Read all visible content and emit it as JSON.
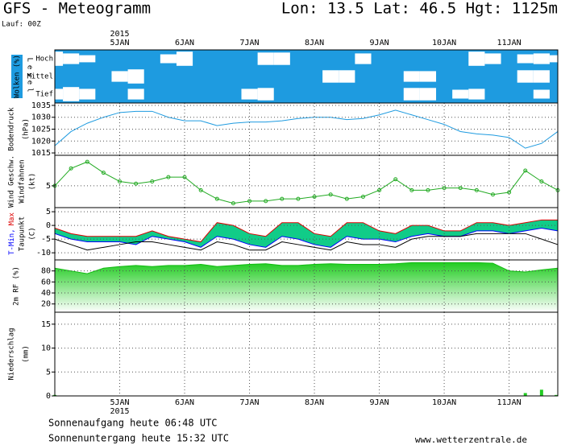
{
  "header": {
    "title": "GFS - Meteogramm",
    "location": "Lon: 13.5 Lat: 46.5 Hgt: 1125m",
    "run": "Lauf: 00Z"
  },
  "footer": {
    "sunrise": "Sonnenaufgang heute 06:48 UTC",
    "sunset": "Sonnenuntergang heute 15:32 UTC",
    "source": "www.wetterzentrale.de"
  },
  "time_axis": {
    "x": [
      0,
      6,
      12,
      18,
      24,
      30,
      36,
      42,
      48,
      54,
      60,
      66,
      72,
      78,
      84,
      90,
      96,
      102,
      108,
      114,
      120,
      126,
      132,
      138,
      144,
      150,
      156,
      162,
      168,
      174,
      180,
      186
    ],
    "xlim": [
      0,
      186
    ],
    "xticks": [
      {
        "value": 24,
        "label": "5JAN"
      },
      {
        "value": 48,
        "label": "6JAN"
      },
      {
        "value": 72,
        "label": "7JAN"
      },
      {
        "value": 96,
        "label": "8JAN"
      },
      {
        "value": 120,
        "label": "9JAN"
      },
      {
        "value": 144,
        "label": "10JAN"
      },
      {
        "value": 168,
        "label": "11JAN"
      }
    ],
    "year_label": "2015"
  },
  "chart_data": [
    {
      "type": "cloud",
      "title": "Wolken (%)",
      "ylabel": "Level",
      "layers": [
        "Hoch",
        "Mittel",
        "Tief"
      ],
      "color": "#ffffff",
      "background": "#1e9be0",
      "values": [
        [
          80,
          60,
          40,
          0,
          0,
          0,
          0,
          50,
          80,
          0,
          0,
          0,
          0,
          70,
          70,
          0,
          0,
          0,
          0,
          60,
          0,
          0,
          0,
          0,
          0,
          0,
          80,
          60,
          0,
          50,
          60,
          40
        ],
        [
          0,
          0,
          0,
          0,
          60,
          80,
          0,
          0,
          0,
          0,
          0,
          0,
          0,
          0,
          0,
          0,
          0,
          70,
          70,
          0,
          0,
          0,
          60,
          60,
          0,
          0,
          0,
          0,
          0,
          70,
          70,
          0
        ],
        [
          60,
          80,
          60,
          0,
          0,
          60,
          0,
          0,
          0,
          0,
          0,
          0,
          60,
          70,
          0,
          0,
          0,
          0,
          0,
          0,
          0,
          0,
          70,
          70,
          0,
          50,
          60,
          0,
          0,
          0,
          50,
          0
        ]
      ]
    },
    {
      "type": "line",
      "ylabel": "Bodendruck",
      "yunit": "(hPa)",
      "ylim": [
        1014,
        1036
      ],
      "yticks": [
        1015,
        1020,
        1025,
        1030,
        1035
      ],
      "grid": true,
      "series": [
        {
          "color": "#1e9be0",
          "values": [
            1018,
            1024,
            1027.5,
            1030,
            1032,
            1032.5,
            1032.5,
            1030,
            1028.5,
            1028.5,
            1026.5,
            1027.5,
            1028,
            1028,
            1028.5,
            1029.5,
            1030,
            1030,
            1029,
            1029.5,
            1031,
            1033,
            1031,
            1029,
            1027,
            1024,
            1023,
            1022.5,
            1021.5,
            1017,
            1019,
            1024
          ]
        }
      ]
    },
    {
      "type": "line",
      "ylabel": "Windfahnen",
      "yunit": "(kt)",
      "ylim": [
        0,
        12
      ],
      "yticks": [
        5
      ],
      "grid": true,
      "markers": true,
      "series": [
        {
          "name": "Wind Geschw.",
          "color": "#22aa22",
          "values": [
            5,
            9,
            10.5,
            8,
            6,
            5.5,
            6,
            7,
            7,
            4,
            2,
            1,
            1.5,
            1.5,
            2,
            2,
            2.5,
            3,
            2,
            2.5,
            4,
            6.5,
            4,
            4,
            4.5,
            4.5,
            4,
            3,
            3.5,
            8.5,
            6,
            4
          ]
        }
      ]
    },
    {
      "type": "band",
      "ylabel": "(C)",
      "ylim": [
        -12.6,
        6.5
      ],
      "yticks": [
        5,
        0,
        -5,
        -10
      ],
      "grid": true,
      "fill": "#11cc88",
      "series": [
        {
          "name": "T-Min,",
          "color": "#0000ff",
          "values": [
            -3,
            -5,
            -6,
            -6,
            -6,
            -7,
            -4,
            -5,
            -6,
            -8,
            -4,
            -5,
            -7,
            -8,
            -4,
            -5,
            -7,
            -8,
            -4,
            -5,
            -5,
            -6,
            -4,
            -3,
            -4,
            -4,
            -2,
            -2,
            -3,
            -2,
            -1,
            -2
          ]
        },
        {
          "name": "Max",
          "color": "#dd0000",
          "values": [
            -1,
            -3,
            -4,
            -4,
            -4,
            -4,
            -2,
            -4,
            -5,
            -6,
            1,
            0,
            -3,
            -4,
            1,
            1,
            -3,
            -4,
            1,
            1,
            -2,
            -3,
            0,
            0,
            -2,
            -2,
            1,
            1,
            0,
            1,
            2,
            2
          ]
        },
        {
          "name": "Taupunkt",
          "color": "#000000",
          "values": [
            -5,
            -7,
            -9,
            -8,
            -7,
            -6,
            -6,
            -7,
            -8,
            -9,
            -6,
            -7,
            -9,
            -9,
            -6,
            -7,
            -8,
            -9,
            -6,
            -7,
            -7,
            -8,
            -5,
            -4,
            -4,
            -4,
            -3,
            -3,
            -3,
            -3,
            -5,
            -7
          ]
        }
      ]
    },
    {
      "type": "area",
      "ylabel": "2m RF (%)",
      "ylim": [
        5,
        100
      ],
      "yticks": [
        20,
        40,
        60,
        80
      ],
      "grid": true,
      "series": [
        {
          "color": "#22cc22",
          "values": [
            85,
            80,
            75,
            85,
            88,
            90,
            88,
            90,
            90,
            92,
            88,
            90,
            92,
            93,
            90,
            90,
            92,
            93,
            92,
            92,
            92,
            93,
            95,
            95,
            95,
            95,
            95,
            94,
            80,
            78,
            82,
            85
          ]
        }
      ]
    },
    {
      "type": "bar",
      "ylabel": "Niederschlag",
      "yunit": "(mm)",
      "ylim": [
        0,
        17.5
      ],
      "yticks": [
        0,
        5,
        10,
        15
      ],
      "grid": true,
      "series": [
        {
          "color": "#22cc22",
          "values": [
            0.2,
            0,
            0,
            0,
            0,
            0,
            0,
            0,
            0,
            0,
            0,
            0,
            0,
            0,
            0,
            0,
            0,
            0,
            0,
            0,
            0,
            0,
            0,
            0,
            0,
            0,
            0,
            0,
            0,
            0.6,
            1.3,
            0.2
          ]
        }
      ]
    }
  ]
}
